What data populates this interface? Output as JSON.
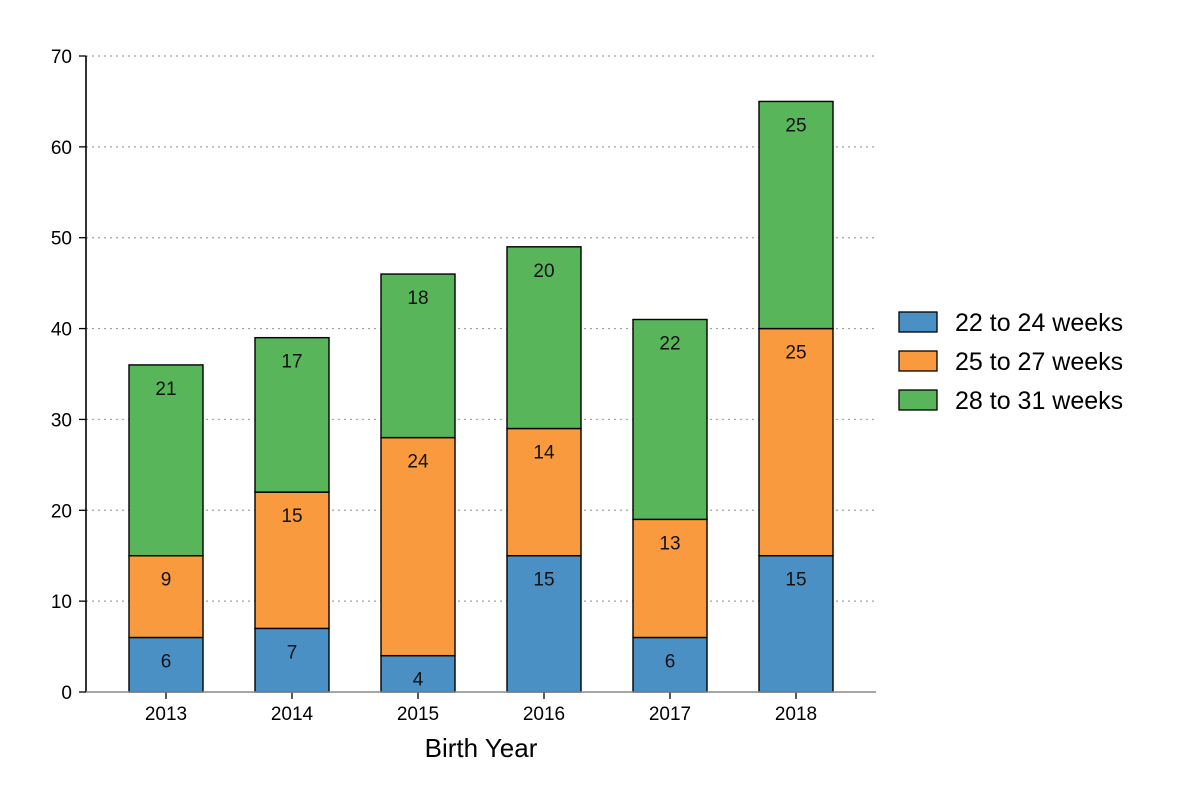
{
  "chart_data": {
    "type": "bar",
    "stacked": true,
    "title": "",
    "xlabel": "Birth Year",
    "ylabel": "",
    "ylim": [
      0,
      70
    ],
    "yticks": [
      0,
      10,
      20,
      30,
      40,
      50,
      60,
      70
    ],
    "grid": "horizontal dotted",
    "legend_position": "right",
    "categories": [
      "2013",
      "2014",
      "2015",
      "2016",
      "2017",
      "2018"
    ],
    "series": [
      {
        "name": "22 to 24 weeks",
        "color": "#4a90c5",
        "values": [
          6,
          7,
          4,
          15,
          6,
          15
        ]
      },
      {
        "name": "25 to 27 weeks",
        "color": "#f99a3e",
        "values": [
          9,
          15,
          24,
          14,
          13,
          25
        ]
      },
      {
        "name": "28 to 31 weeks",
        "color": "#58b55a",
        "values": [
          21,
          17,
          18,
          20,
          22,
          25
        ]
      }
    ]
  }
}
